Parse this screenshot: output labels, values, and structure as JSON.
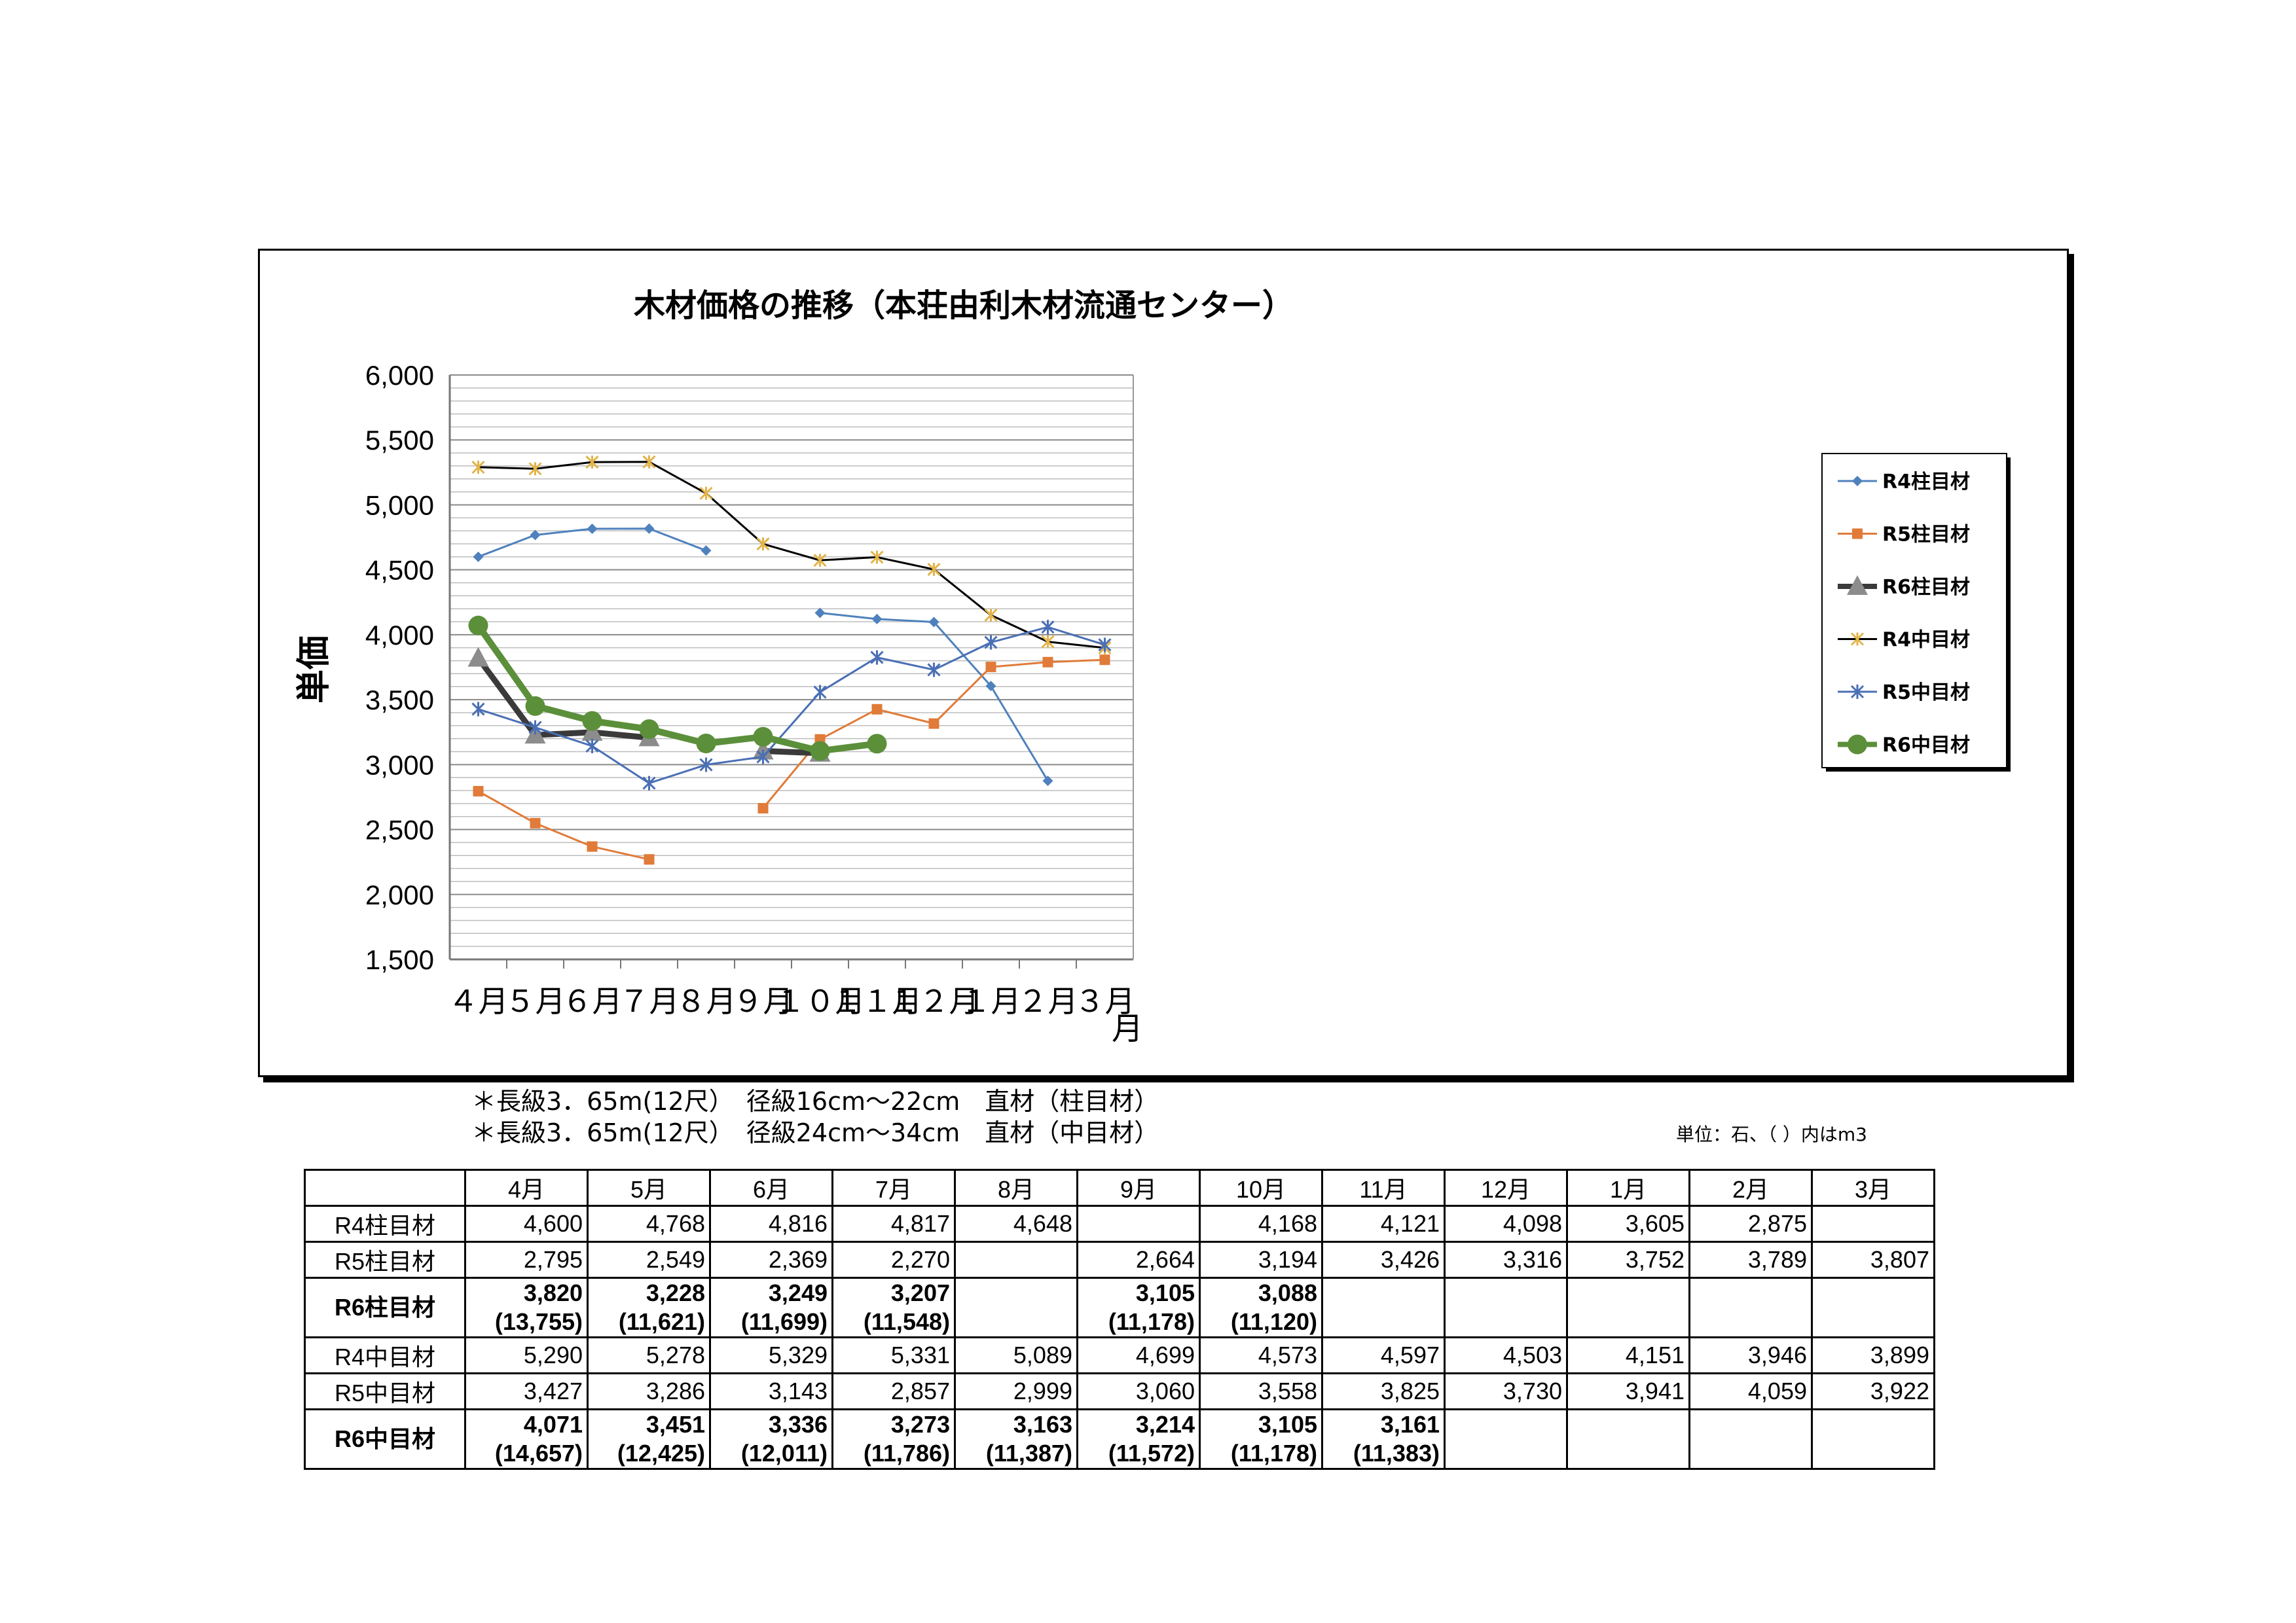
{
  "chart_data": {
    "type": "line",
    "title": "木材価格の推移（本荘由利木材流通センター）",
    "xlabel": "月",
    "ylabel": "単価",
    "categories": [
      "４月",
      "５月",
      "６月",
      "７月",
      "８月",
      "９月",
      "１０月",
      "１１月",
      "１２月",
      "１月",
      "２月",
      "３月"
    ],
    "ylim": [
      1500,
      6000
    ],
    "yticks": [
      "1,500",
      "2,000",
      "2,500",
      "3,000",
      "3,500",
      "4,000",
      "4,500",
      "5,000",
      "5,500",
      "6,000"
    ],
    "grid": true,
    "legend_position": "right",
    "series": [
      {
        "name": "R4柱目材",
        "color": "#4f81bd",
        "marker": "diamond",
        "width": 3,
        "values": [
          4600,
          4768,
          4816,
          4817,
          4648,
          null,
          4168,
          4121,
          4098,
          3605,
          2875,
          null
        ]
      },
      {
        "name": "R5柱目材",
        "color": "#e07b39",
        "marker": "square",
        "width": 3,
        "values": [
          2795,
          2549,
          2369,
          2270,
          null,
          2664,
          3194,
          3426,
          3316,
          3752,
          3789,
          3807
        ]
      },
      {
        "name": "R6柱目材",
        "color": "#3a3a3a",
        "marker": "triangle",
        "width": 9,
        "values": [
          3820,
          3228,
          3249,
          3207,
          null,
          3105,
          3088,
          null,
          null,
          null,
          null,
          null
        ]
      },
      {
        "name": "R4中目材",
        "color": "#000000",
        "marker": "star",
        "width": 3,
        "values": [
          5290,
          5278,
          5329,
          5331,
          5089,
          4699,
          4573,
          4597,
          4503,
          4151,
          3946,
          3899
        ]
      },
      {
        "name": "R5中目材",
        "color": "#4a6fb5",
        "marker": "asterisk",
        "width": 3,
        "values": [
          3427,
          3286,
          3143,
          2857,
          2999,
          3060,
          3558,
          3825,
          3730,
          3941,
          4059,
          3922
        ]
      },
      {
        "name": "R6中目材",
        "color": "#5b8f3a",
        "marker": "circle",
        "width": 10,
        "values": [
          4071,
          3451,
          3336,
          3273,
          3163,
          3214,
          3105,
          3161,
          null,
          null,
          null,
          null
        ]
      }
    ]
  },
  "notes": {
    "line1": "＊長級3．65m(12尺）　径級16cm～22cm　直材（柱目材）",
    "line2": "＊長級3．65m(12尺）　径級24cm～34cm　直材（中目材）",
    "unit": "単位：石、（ ）内はm3"
  },
  "table": {
    "headers": [
      "",
      "4月",
      "5月",
      "6月",
      "7月",
      "8月",
      "9月",
      "10月",
      "11月",
      "12月",
      "1月",
      "2月",
      "3月"
    ],
    "rows": [
      {
        "label": "R4柱目材",
        "bold": false,
        "values": [
          "4,600",
          "4,768",
          "4,816",
          "4,817",
          "4,648",
          "",
          "4,168",
          "4,121",
          "4,098",
          "3,605",
          "2,875",
          ""
        ]
      },
      {
        "label": "R5柱目材",
        "bold": false,
        "values": [
          "2,795",
          "2,549",
          "2,369",
          "2,270",
          "",
          "2,664",
          "3,194",
          "3,426",
          "3,316",
          "3,752",
          "3,789",
          "3,807"
        ]
      },
      {
        "label": "R6柱目材",
        "bold": true,
        "values": [
          "3,820",
          "3,228",
          "3,249",
          "3,207",
          "",
          "3,105",
          "3,088",
          "",
          "",
          "",
          "",
          ""
        ],
        "sub": [
          "(13,755)",
          "(11,621)",
          "(11,699)",
          "(11,548)",
          "",
          "(11,178)",
          "(11,120)",
          "",
          "",
          "",
          "",
          ""
        ]
      },
      {
        "label": "R4中目材",
        "bold": false,
        "values": [
          "5,290",
          "5,278",
          "5,329",
          "5,331",
          "5,089",
          "4,699",
          "4,573",
          "4,597",
          "4,503",
          "4,151",
          "3,946",
          "3,899"
        ]
      },
      {
        "label": "R5中目材",
        "bold": false,
        "values": [
          "3,427",
          "3,286",
          "3,143",
          "2,857",
          "2,999",
          "3,060",
          "3,558",
          "3,825",
          "3,730",
          "3,941",
          "4,059",
          "3,922"
        ]
      },
      {
        "label": "R6中目材",
        "bold": true,
        "values": [
          "4,071",
          "3,451",
          "3,336",
          "3,273",
          "3,163",
          "3,214",
          "3,105",
          "3,161",
          "",
          "",
          "",
          ""
        ],
        "sub": [
          "(14,657)",
          "(12,425)",
          "(12,011)",
          "(11,786)",
          "(11,387)",
          "(11,572)",
          "(11,178)",
          "(11,383)",
          "",
          "",
          "",
          ""
        ]
      }
    ]
  }
}
